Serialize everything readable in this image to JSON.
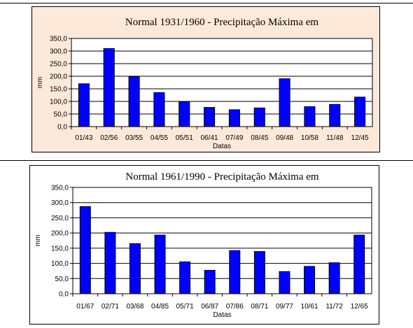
{
  "chart_data": [
    {
      "type": "bar",
      "title": "Normal 1931/1960 - Precipitação Máxima em",
      "xlabel": "Datas",
      "ylabel": "mm",
      "categories": [
        "01/43",
        "02/56",
        "03/55",
        "04/55",
        "05/51",
        "06/41",
        "07/49",
        "08/45",
        "09/48",
        "10/58",
        "11/48",
        "12/45"
      ],
      "values": [
        170,
        310,
        198,
        135,
        98,
        76,
        67,
        74,
        190,
        79,
        88,
        117
      ],
      "ylim": [
        0,
        350
      ],
      "yticks": [
        "0,0",
        "50,0",
        "100,0",
        "150,0",
        "200,0",
        "250,0",
        "300,0",
        "350,0"
      ],
      "grid": true,
      "bar_color": "#0000ff",
      "background": "#fde9d9"
    },
    {
      "type": "bar",
      "title": "Normal 1961/1990 - Precipitação Máxima em",
      "xlabel": "Datas",
      "ylabel": "mm",
      "categories": [
        "01/67",
        "02/71",
        "03/68",
        "04/85",
        "05/71",
        "06/87",
        "07/86",
        "08/71",
        "09/77",
        "10/61",
        "11/72",
        "12/65"
      ],
      "values": [
        287,
        202,
        165,
        193,
        105,
        77,
        142,
        139,
        73,
        90,
        102,
        193
      ],
      "ylim": [
        0,
        350
      ],
      "yticks": [
        "0,0",
        "50,0",
        "100,0",
        "150,0",
        "200,0",
        "250,0",
        "300,0",
        "350,0"
      ],
      "grid": true,
      "bar_color": "#0000ff",
      "background": "#ffffff"
    }
  ]
}
